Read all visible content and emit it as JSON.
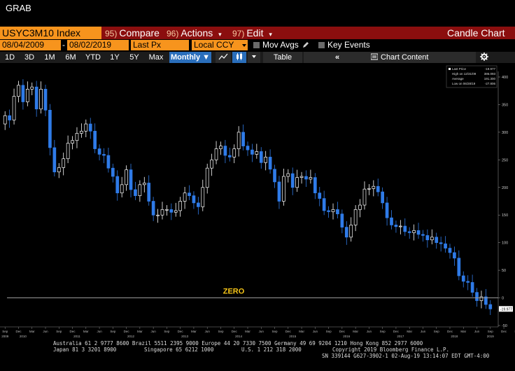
{
  "window": {
    "title": "GRAB"
  },
  "toolbar": {
    "ticker": "USYC3M10 Index",
    "compare": {
      "num": "95)",
      "label": "Compare"
    },
    "actions": {
      "num": "96)",
      "label": "Actions",
      "arrow": "▾"
    },
    "edit": {
      "num": "97)",
      "label": "Edit",
      "arrow": "▾"
    },
    "chart_type": "Candle Chart"
  },
  "range": {
    "start": "08/04/2009",
    "dash": "-",
    "end": "08/02/2019",
    "price_field": "Last Px",
    "currency": "Local CCY",
    "mov_avgs": "Mov Avgs",
    "key_events": "Key Events"
  },
  "periods": {
    "items": [
      "1D",
      "3D",
      "1M",
      "6M",
      "YTD",
      "1Y",
      "5Y",
      "Max"
    ],
    "frequency": "Monthly ▼",
    "table": "Table",
    "collapse": "«",
    "chart_content": "Chart Content"
  },
  "legend": {
    "last_price": "Last Price",
    "last_price_val": "-19.977",
    "high": "High on 12/31/09",
    "high_val": "386.093",
    "average": "Average",
    "average_val": "191.300",
    "low": "Low on 06/28/19",
    "low_val": "-27.806"
  },
  "annotation": {
    "zero": "ZERO"
  },
  "last_value_tag": "-19.977",
  "colors": {
    "up": "#ffffff",
    "down": "#2f7be8",
    "zero_line": "#9a9a9a",
    "annotation": "#f5c518",
    "toolbar_red": "#8b0e0e",
    "ticker_orange": "#f7941d"
  },
  "chart_data": {
    "type": "candlestick",
    "title": "",
    "xlabel": "",
    "ylabel": "",
    "ylim": [
      -50,
      400
    ],
    "yticks": [
      "400",
      "350",
      "300",
      "250",
      "200",
      "150",
      "100",
      "50",
      "0",
      "-50"
    ],
    "x_month_labels": [
      "Sep",
      "Dec",
      "Mar",
      "Jun",
      "Sep",
      "Dec",
      "Mar",
      "Jun",
      "Sep",
      "Dec",
      "Mar",
      "Jun",
      "Sep",
      "Dec",
      "Mar",
      "Jun",
      "Sep",
      "Dec",
      "Mar",
      "Jun",
      "Sep",
      "Dec",
      "Mar",
      "Jun",
      "Sep",
      "Dec",
      "Mar",
      "Jun",
      "Sep",
      "Dec",
      "Mar",
      "Jun",
      "Sep",
      "Dec",
      "Mar",
      "Jun",
      "Sep",
      "Dec",
      "Mar",
      "Jun",
      "Sep"
    ],
    "x_year_labels": [
      "2009",
      "2010",
      "2011",
      "2012",
      "2013",
      "2014",
      "2015",
      "2016",
      "2017",
      "2018",
      "2019"
    ],
    "closes": [
      330,
      322,
      365,
      385,
      355,
      378,
      382,
      342,
      378,
      340,
      272,
      228,
      236,
      252,
      280,
      285,
      298,
      302,
      315,
      302,
      270,
      260,
      258,
      235,
      220,
      190,
      205,
      232,
      196,
      185,
      205,
      208,
      175,
      150,
      150,
      160,
      160,
      155,
      158,
      175,
      190,
      185,
      172,
      165,
      200,
      235,
      250,
      270,
      275,
      258,
      255,
      270,
      300,
      275,
      268,
      260,
      265,
      245,
      255,
      233,
      210,
      175,
      220,
      225,
      200,
      218,
      220,
      215,
      218,
      190,
      180,
      158,
      156,
      160,
      152,
      128,
      110,
      132,
      160,
      168,
      197,
      198,
      202,
      192,
      172,
      145,
      132,
      129,
      130,
      120,
      118,
      122,
      115,
      113,
      105,
      110,
      100,
      98,
      90,
      82,
      72,
      40,
      30,
      28,
      10,
      -5,
      2,
      -12,
      -20
    ],
    "open_start": 315,
    "highs_note": "High on 12/31/09 386.093",
    "low_note": "Low on 06/28/19 -27.806",
    "reference_line": {
      "y": 0,
      "label": "ZERO"
    },
    "last": -19.977
  },
  "footer": {
    "line1": "Australia 61 2 9777 8600 Brazil 5511 2395 9000 Europe 44 20 7330 7500 Germany 49 69 9204 1210 Hong Kong 852 2977 6000",
    "line2a": "Japan 81 3 3201 8900",
    "line2b": "Singapore 65 6212 1000",
    "line2c": "U.S. 1 212 318 2000",
    "line2d": "Copyright 2019 Bloomberg Finance L.P.",
    "line3": "SN 339144 G627-3902-1 02-Aug-19 13:14:07 EDT  GMT-4:00"
  }
}
